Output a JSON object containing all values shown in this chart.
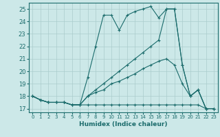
{
  "xlabel": "Humidex (Indice chaleur)",
  "background_color": "#cce8e8",
  "grid_color": "#aacccc",
  "line_color": "#1a6b6b",
  "xlim": [
    -0.5,
    23.5
  ],
  "ylim": [
    16.7,
    25.5
  ],
  "yticks": [
    17,
    18,
    19,
    20,
    21,
    22,
    23,
    24,
    25
  ],
  "xticks": [
    0,
    1,
    2,
    3,
    4,
    5,
    6,
    7,
    8,
    9,
    10,
    11,
    12,
    13,
    14,
    15,
    16,
    17,
    18,
    19,
    20,
    21,
    22,
    23
  ],
  "series": [
    [
      18.0,
      17.7,
      17.5,
      17.5,
      17.5,
      17.3,
      17.3,
      17.3,
      17.3,
      17.3,
      17.3,
      17.3,
      17.3,
      17.3,
      17.3,
      17.3,
      17.3,
      17.3,
      17.3,
      17.3,
      17.3,
      17.3,
      17.0,
      17.0
    ],
    [
      18.0,
      17.7,
      17.5,
      17.5,
      17.5,
      17.3,
      17.3,
      18.0,
      18.3,
      18.5,
      19.0,
      19.2,
      19.5,
      19.8,
      20.2,
      20.5,
      20.8,
      21.0,
      20.5,
      19.0,
      18.0,
      18.5,
      17.0,
      17.0
    ],
    [
      18.0,
      17.7,
      17.5,
      17.5,
      17.5,
      17.3,
      17.3,
      18.0,
      18.5,
      19.0,
      19.5,
      20.0,
      20.5,
      21.0,
      21.5,
      22.0,
      22.5,
      25.0,
      25.0,
      20.5,
      18.0,
      18.5,
      17.0,
      17.0
    ],
    [
      18.0,
      17.7,
      17.5,
      17.5,
      17.5,
      17.3,
      17.3,
      19.5,
      22.0,
      24.5,
      24.5,
      23.3,
      24.5,
      24.8,
      25.0,
      25.2,
      24.3,
      25.0,
      25.0,
      20.5,
      18.0,
      18.5,
      17.0,
      17.0
    ]
  ]
}
